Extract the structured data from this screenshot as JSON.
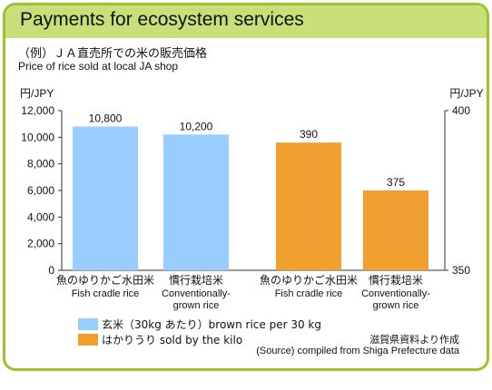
{
  "header": {
    "title": "Payments for ecosystem services",
    "subtitle_ja": "（例）ＪＡ直売所での米の販売価格",
    "subtitle_en": "Price of rice sold at local JA shop"
  },
  "colors": {
    "frame": "#9dc32a",
    "header_bg": "#c8e07a",
    "blue": "#99ccff",
    "orange": "#f0a030"
  },
  "chart_data": {
    "type": "bar",
    "left_axis": {
      "unit": "円/JPY",
      "ylim": [
        0,
        12000
      ],
      "ticks": [
        "0",
        "2,000",
        "4,000",
        "6,000",
        "8,000",
        "10,000",
        "12,000"
      ]
    },
    "right_axis": {
      "unit": "円/JPY",
      "ylim": [
        350,
        400
      ],
      "ticks": [
        "350",
        "400"
      ]
    },
    "groups": [
      {
        "axis": "left",
        "color": "#99ccff",
        "series": "玄米（30kg あたり）brown rice per 30 kg",
        "bars": [
          {
            "category_ja": "魚のゆりかご水田米",
            "category_en": "Fish cradle rice",
            "value": 10800,
            "label": "10,800"
          },
          {
            "category_ja": "慣行栽培米",
            "category_en": "Conventionally-grown rice",
            "value": 10200,
            "label": "10,200"
          }
        ]
      },
      {
        "axis": "right",
        "color": "#f0a030",
        "series": "はかりうり sold by the kilo",
        "bars": [
          {
            "category_ja": "魚のゆりかご水田米",
            "category_en": "Fish cradle rice",
            "value": 390,
            "label": "390"
          },
          {
            "category_ja": "慣行栽培米",
            "category_en": "Conventionally-grown rice",
            "value": 375,
            "label": "375"
          }
        ]
      }
    ],
    "legend": [
      {
        "label": "玄米（30kg あたり）brown rice per 30 kg",
        "color": "#99ccff"
      },
      {
        "label": "はかりうり sold by the kilo",
        "color": "#f0a030"
      }
    ]
  },
  "source": {
    "ja": "滋賀県資料より作成",
    "en": "(Source) compiled from Shiga Prefecture data"
  }
}
